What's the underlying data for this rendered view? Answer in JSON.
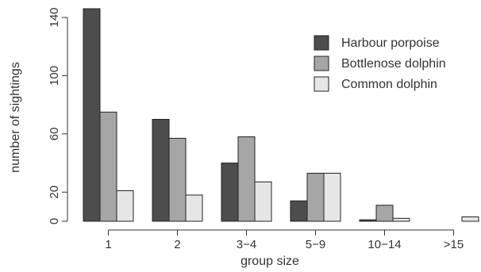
{
  "chart_data": {
    "type": "bar",
    "layout": "grouped",
    "xlabel": "group size",
    "ylabel": "number of sightings",
    "categories": [
      "1",
      "2",
      "3−4",
      "5−9",
      "10−14",
      ">15"
    ],
    "series": [
      {
        "name": "Harbour porpoise",
        "color": "#4d4d4d",
        "values": [
          146,
          70,
          40,
          14,
          1,
          0
        ]
      },
      {
        "name": "Bottlenose dolphin",
        "color": "#a6a6a6",
        "values": [
          75,
          57,
          58,
          33,
          11,
          0
        ]
      },
      {
        "name": "Common dolphin",
        "color": "#e6e6e6",
        "values": [
          21,
          18,
          27,
          33,
          2,
          3
        ]
      }
    ],
    "yticks": [
      0,
      20,
      60,
      100,
      140
    ],
    "ylim": [
      0,
      146
    ],
    "grid": false,
    "legend_position": "top-right"
  }
}
